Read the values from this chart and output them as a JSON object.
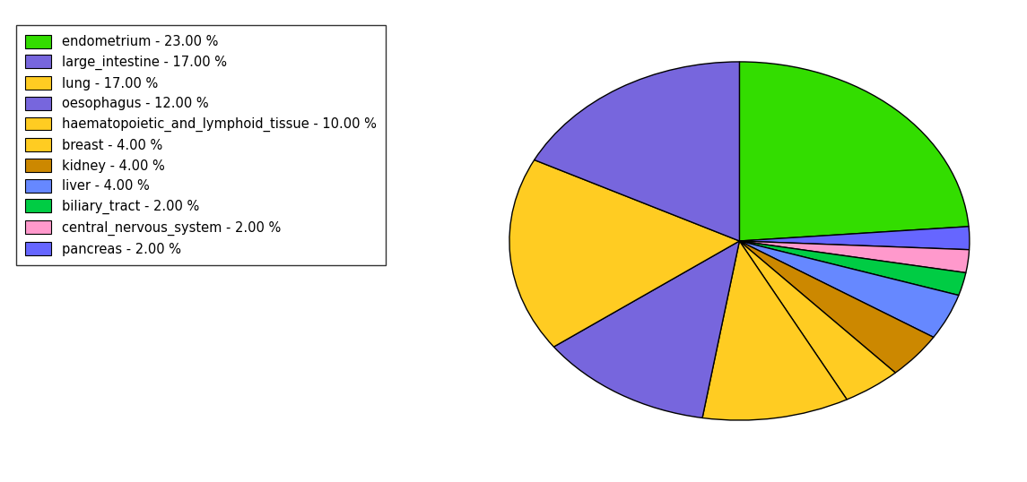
{
  "labels": [
    "endometrium",
    "pancreas",
    "central_nervous_system",
    "biliary_tract",
    "liver",
    "kidney",
    "breast",
    "haematopoietic_and_lymphoid_tissue",
    "oesophagus",
    "lung",
    "large_intestine"
  ],
  "values": [
    23,
    2,
    2,
    2,
    4,
    4,
    4,
    10,
    12,
    17,
    17
  ],
  "colors": [
    "#33dd00",
    "#6666ff",
    "#ff99cc",
    "#00cc44",
    "#6688ff",
    "#cc8800",
    "#ffcc22",
    "#ffcc22",
    "#7766dd",
    "#ffcc22",
    "#7766dd"
  ],
  "legend_order_labels": [
    "endometrium - 23.00 %",
    "large_intestine - 17.00 %",
    "lung - 17.00 %",
    "oesophagus - 12.00 %",
    "haematopoietic_and_lymphoid_tissue - 10.00 %",
    "breast - 4.00 %",
    "kidney - 4.00 %",
    "liver - 4.00 %",
    "biliary_tract - 2.00 %",
    "central_nervous_system - 2.00 %",
    "pancreas - 2.00 %"
  ],
  "legend_order_colors": [
    "#33dd00",
    "#7766dd",
    "#ffcc22",
    "#7766dd",
    "#ffcc22",
    "#ffcc22",
    "#cc8800",
    "#6688ff",
    "#00cc44",
    "#ff99cc",
    "#6666ff"
  ],
  "start_angle": 90,
  "figsize": [
    11.45,
    5.38
  ],
  "dpi": 100
}
